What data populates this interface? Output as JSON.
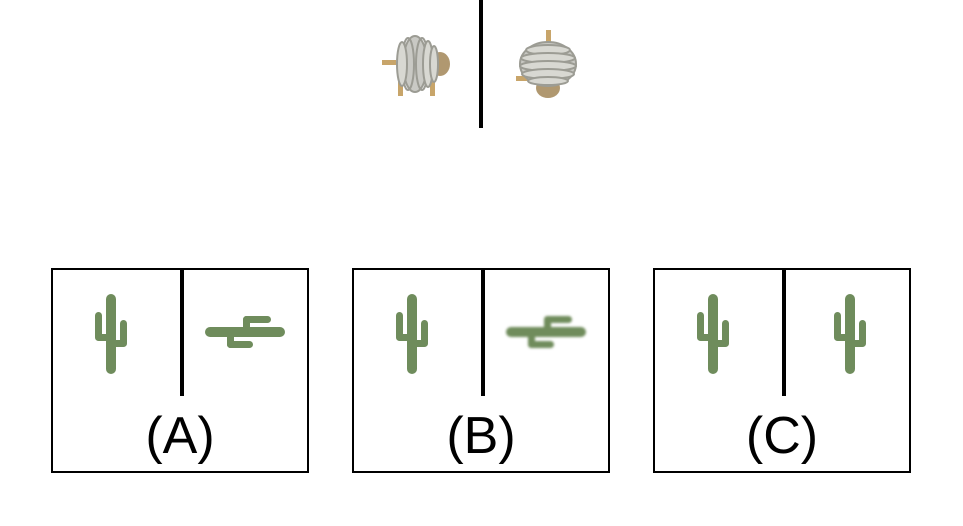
{
  "example": {
    "left_icon": "coiled-yarn-creature-icon",
    "right_icon": "coiled-yarn-creature-rotated-icon"
  },
  "options": [
    {
      "label": "(A)",
      "left_icon": "cactus-icon",
      "right_icon": "cactus-rotated-icon"
    },
    {
      "label": "(B)",
      "left_icon": "cactus-icon",
      "right_icon": "cactus-rotated-blurred-icon"
    },
    {
      "label": "(C)",
      "left_icon": "cactus-icon",
      "right_icon": "cactus-icon"
    }
  ],
  "colors": {
    "cactus": "#6f8c5c",
    "coil": "#c9c9c4",
    "coil_shadow": "#9c9c94",
    "leg": "#c8a56a",
    "body": "#b09870",
    "border": "#000000"
  }
}
